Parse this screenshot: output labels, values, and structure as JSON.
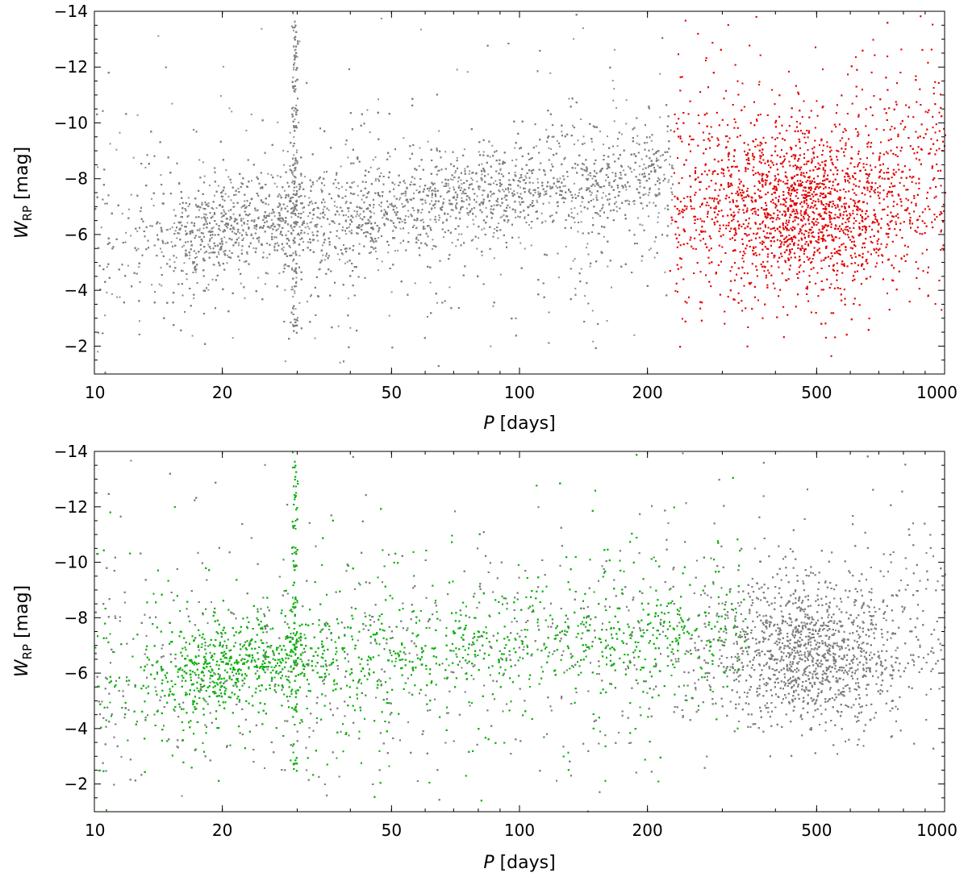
{
  "chart_data": [
    {
      "type": "scatter",
      "panel": "top",
      "xlabel": "P [days]",
      "ylabel": "W_RP [mag]",
      "xscale": "log",
      "xlim": [
        10,
        1000
      ],
      "ylim": [
        -1,
        -14
      ],
      "y_inverted": true,
      "xticks": [
        10,
        20,
        50,
        100,
        200,
        500,
        1000
      ],
      "xtick_labels": [
        "10",
        "20",
        "50",
        "100",
        "200",
        "500",
        "1000"
      ],
      "yticks": [
        -2,
        -4,
        -6,
        -8,
        -10,
        -12,
        -14
      ],
      "ytick_labels": [
        "−2",
        "−4",
        "−6",
        "−8",
        "−10",
        "−12",
        "−14"
      ],
      "grid": false,
      "series": [
        {
          "color": "#7f7f7f",
          "approx_count": 9000,
          "density_ridges": [
            {
              "from": [
                15,
                -5.8
              ],
              "to": [
                30,
                -6.9
              ]
            },
            {
              "from": [
                30,
                -6.2
              ],
              "to": [
                80,
                -7.6
              ]
            },
            {
              "from": [
                80,
                -7.2
              ],
              "to": [
                230,
                -8.4
              ]
            }
          ],
          "x_range": [
            10,
            230
          ],
          "vertical_feature_at_x": 29.5
        },
        {
          "color": "#e00000",
          "approx_count": 5000,
          "density_peak": [
            460,
            -6.8
          ],
          "x_range": [
            230,
            1000
          ]
        }
      ]
    },
    {
      "type": "scatter",
      "panel": "bottom",
      "xlabel": "P [days]",
      "ylabel": "W_RP [mag]",
      "xscale": "log",
      "xlim": [
        10,
        1000
      ],
      "ylim": [
        -1,
        -14
      ],
      "y_inverted": true,
      "xticks": [
        10,
        20,
        50,
        100,
        200,
        500,
        1000
      ],
      "xtick_labels": [
        "10",
        "20",
        "50",
        "100",
        "200",
        "500",
        "1000"
      ],
      "yticks": [
        -2,
        -4,
        -6,
        -8,
        -10,
        -12,
        -14
      ],
      "ytick_labels": [
        "−2",
        "−4",
        "−6",
        "−8",
        "−10",
        "−12",
        "−14"
      ],
      "grid": false,
      "series": [
        {
          "color": "#7f7f7f",
          "approx_count": 9000,
          "density_peak": [
            470,
            -6.7
          ],
          "x_range": [
            10,
            1000
          ]
        },
        {
          "color": "#10b010",
          "approx_count": 7000,
          "density_ridges": [
            {
              "from": [
                15,
                -5.8
              ],
              "to": [
                30,
                -6.8
              ]
            },
            {
              "from": [
                30,
                -6.3
              ],
              "to": [
                330,
                -7.6
              ]
            }
          ],
          "x_range": [
            10,
            340
          ],
          "vertical_feature_at_x": 29.5
        }
      ]
    }
  ]
}
